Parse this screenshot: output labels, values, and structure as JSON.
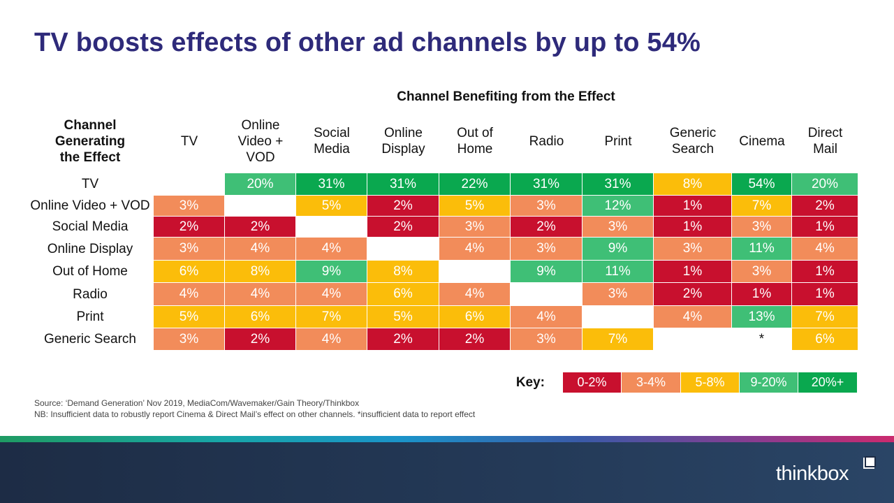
{
  "title": "TV boosts effects of other ad channels by up to 54%",
  "super_header": "Channel Benefiting from the Effect",
  "corner_label": "Channel Generating the Effect",
  "columns": [
    "TV",
    "Online Video + VOD",
    "Social Media",
    "Online Display",
    "Out of Home",
    "Radio",
    "Print",
    "Generic Search",
    "Cinema",
    "Direct Mail"
  ],
  "rows": [
    {
      "label": "TV",
      "values": [
        "",
        "20%",
        "31%",
        "31%",
        "22%",
        "31%",
        "31%",
        "8%",
        "54%",
        "20%"
      ]
    },
    {
      "label": "Online Video + VOD",
      "values": [
        "3%",
        "",
        "5%",
        "2%",
        "5%",
        "3%",
        "12%",
        "1%",
        "7%",
        "2%"
      ]
    },
    {
      "label": "Social Media",
      "values": [
        "2%",
        "2%",
        "",
        "2%",
        "3%",
        "2%",
        "3%",
        "1%",
        "3%",
        "1%"
      ]
    },
    {
      "label": "Online Display",
      "values": [
        "3%",
        "4%",
        "4%",
        "",
        "4%",
        "3%",
        "9%",
        "3%",
        "11%",
        "4%"
      ]
    },
    {
      "label": "Out of Home",
      "values": [
        "6%",
        "8%",
        "9%",
        "8%",
        "",
        "9%",
        "11%",
        "1%",
        "3%",
        "1%"
      ]
    },
    {
      "label": "Radio",
      "values": [
        "4%",
        "4%",
        "4%",
        "6%",
        "4%",
        "",
        "3%",
        "2%",
        "1%",
        "1%"
      ]
    },
    {
      "label": "Print",
      "values": [
        "5%",
        "6%",
        "7%",
        "5%",
        "6%",
        "4%",
        "",
        "4%",
        "13%",
        "7%"
      ]
    },
    {
      "label": "Generic Search",
      "values": [
        "3%",
        "2%",
        "4%",
        "2%",
        "2%",
        "3%",
        "7%",
        "",
        "*",
        "6%"
      ]
    }
  ],
  "key": {
    "label": "Key:",
    "items": [
      {
        "label": "0-2%",
        "color": "#c8102e"
      },
      {
        "label": "3-4%",
        "color": "#f28c5a"
      },
      {
        "label": "5-8%",
        "color": "#fbbd0a"
      },
      {
        "label": "9-20%",
        "color": "#3fbf76"
      },
      {
        "label": "20%+",
        "color": "#0aa84f"
      }
    ]
  },
  "source_line1": "Source: ‘Demand Generation’ Nov 2019, MediaCom/Wavemaker/Gain  Theory/Thinkbox",
  "source_line2": "NB: Insufficient data to robustly report Cinema  & Direct Mail’s effect on other channels. *insufficient data to report effect",
  "logo": "thinkbox"
}
